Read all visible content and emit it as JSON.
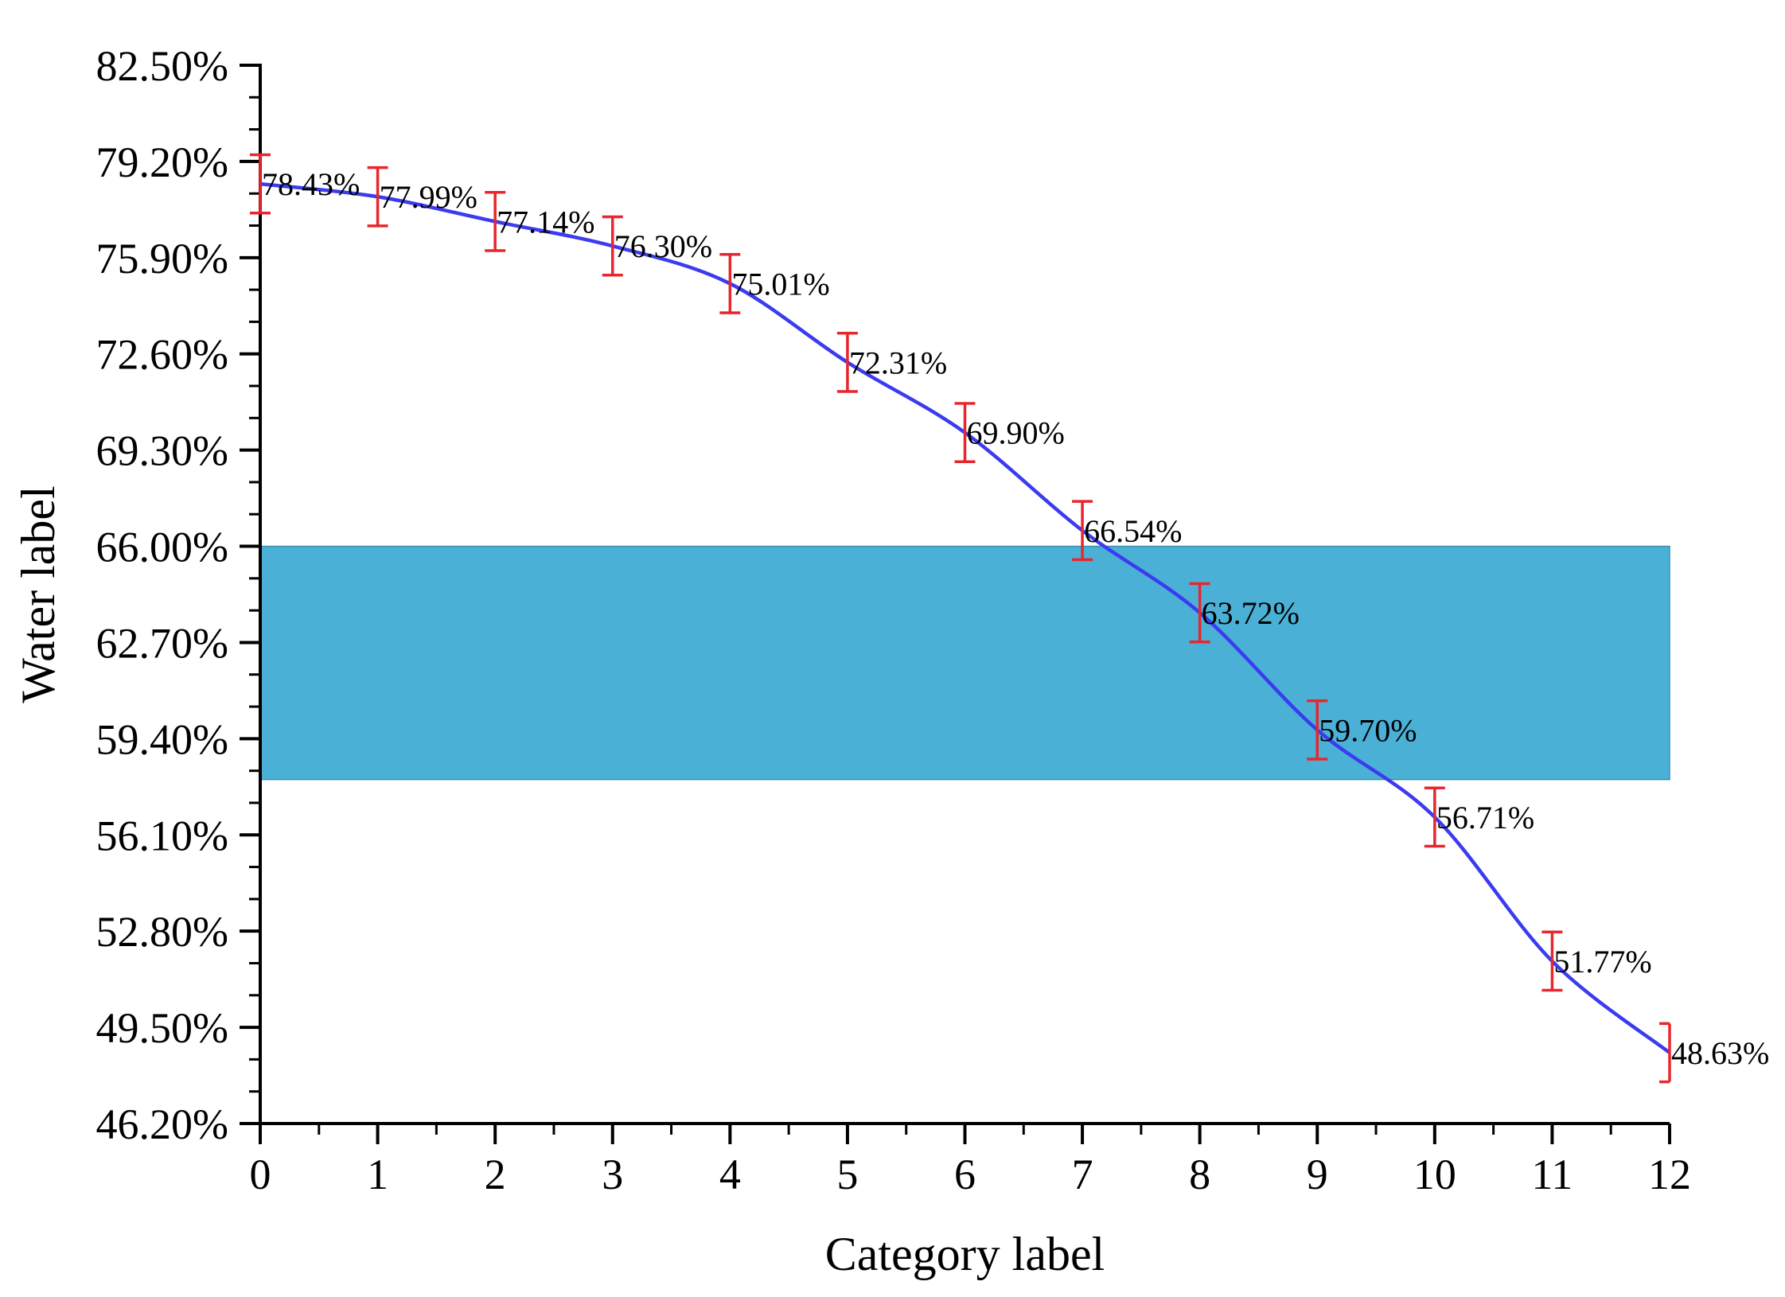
{
  "chart_data": {
    "type": "line",
    "title": "",
    "xlabel": "Category label",
    "ylabel": "Water label",
    "x": [
      0,
      1,
      2,
      3,
      4,
      5,
      6,
      7,
      8,
      9,
      10,
      11,
      12
    ],
    "xlim": [
      0,
      12
    ],
    "ylim": [
      46.2,
      82.5
    ],
    "yticks": [
      46.2,
      49.5,
      52.8,
      56.1,
      59.4,
      62.7,
      66.0,
      69.3,
      72.6,
      75.9,
      79.2,
      82.5
    ],
    "yticklabels": [
      "46.20%",
      "49.50%",
      "52.80%",
      "56.10%",
      "59.40%",
      "62.70%",
      "66.00%",
      "69.30%",
      "72.60%",
      "75.90%",
      "79.20%",
      "82.50%"
    ],
    "xticklabels": [
      "0",
      "1",
      "2",
      "3",
      "4",
      "5",
      "6",
      "7",
      "8",
      "9",
      "10",
      "11",
      "12"
    ],
    "series": [
      {
        "name": "Water label",
        "color": "#3b3bf0",
        "values": [
          78.43,
          77.99,
          77.14,
          76.3,
          75.01,
          72.31,
          69.9,
          66.54,
          63.72,
          59.7,
          56.71,
          51.77,
          48.63
        ],
        "labels": [
          "78.43%",
          "77.99%",
          "77.14%",
          "76.30%",
          "75.01%",
          "72.31%",
          "69.90%",
          "66.54%",
          "63.72%",
          "59.70%",
          "56.71%",
          "51.77%",
          "48.63%"
        ],
        "error": 1.0,
        "error_color": "#e8262d"
      }
    ],
    "band": {
      "y_range": [
        58.0,
        66.0
      ],
      "color": "#4bb0d6"
    },
    "grid": false,
    "legend": "none"
  }
}
